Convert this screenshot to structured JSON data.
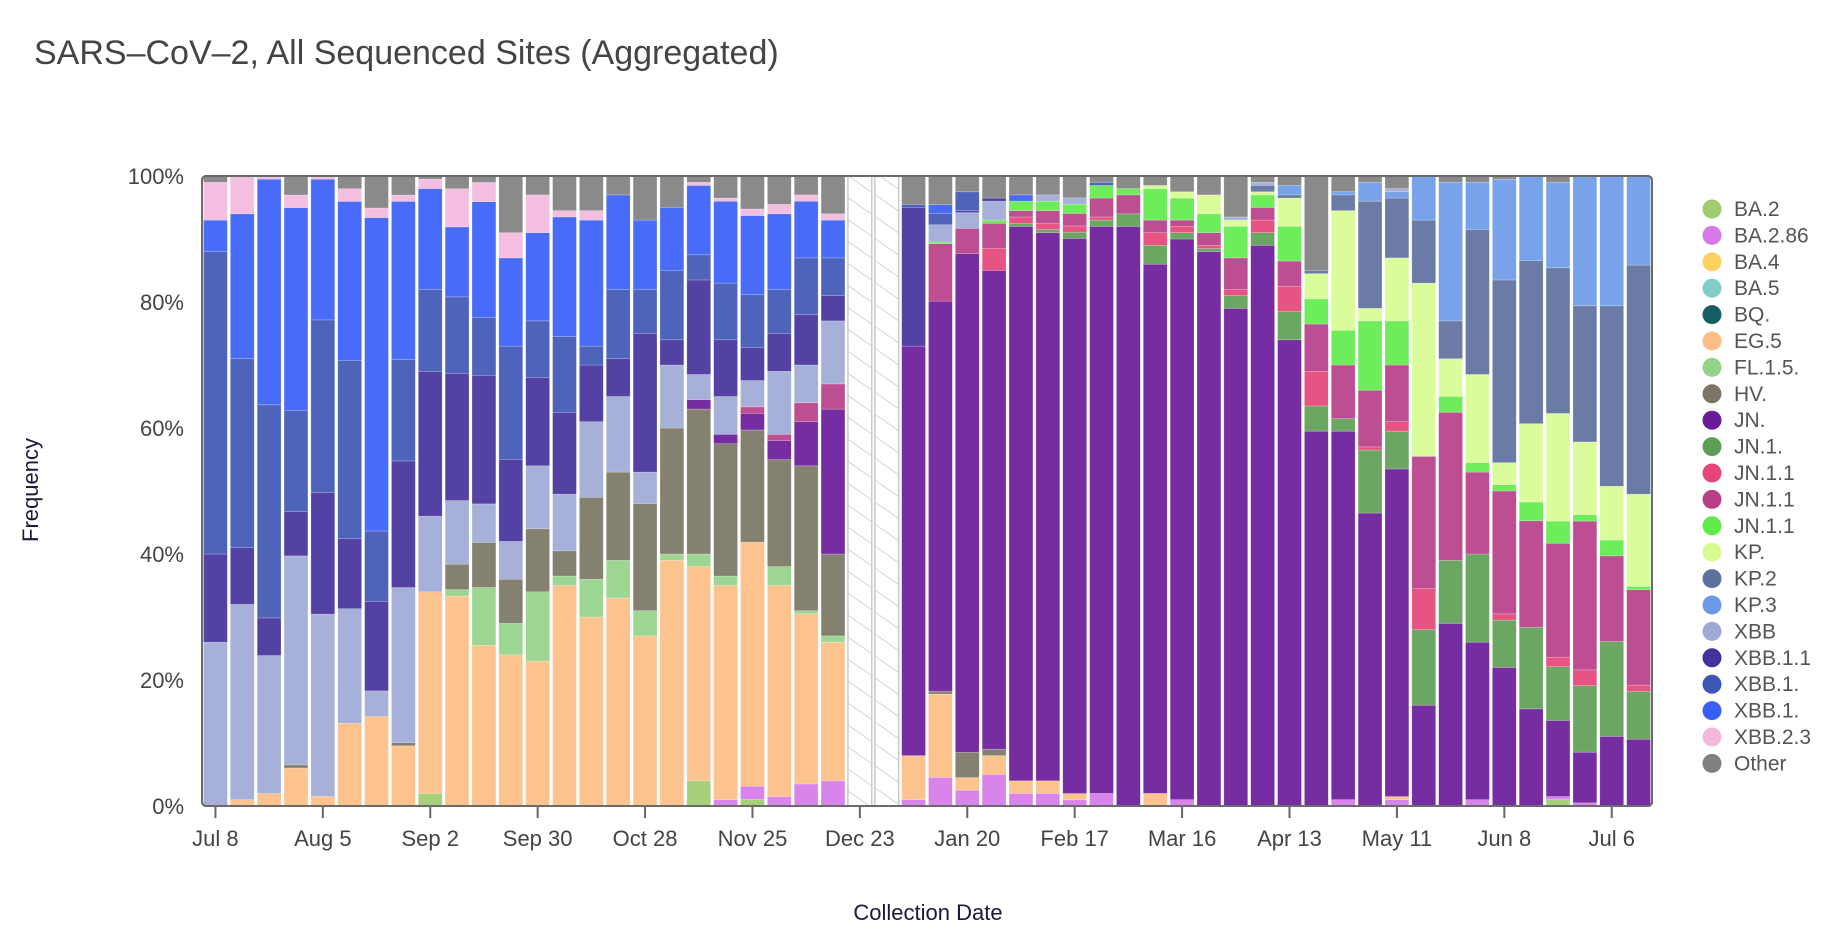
{
  "chart_data": {
    "type": "bar",
    "stacked": true,
    "normalized": true,
    "title": "SARS–CoV–2, All Sequenced Sites (Aggregated)",
    "xlabel": "Collection Date",
    "ylabel": "Frequency",
    "ylim": [
      0,
      100
    ],
    "y_ticks": [
      "0%",
      "20%",
      "40%",
      "60%",
      "80%",
      "100%"
    ],
    "x_tick_labels": [
      "Jul 8",
      "Aug 5",
      "Sep 2",
      "Sep 30",
      "Oct 28",
      "Nov 25",
      "Dec 23",
      "Jan 20",
      "Feb 17",
      "Mar 16",
      "Apr 13",
      "May 11",
      "Jun 8",
      "Jul 6"
    ],
    "x_tick_every_n_weeks": 4,
    "weeks": 54,
    "missing_weeks": [
      24,
      25
    ],
    "legend_position": "right",
    "series": [
      {
        "name": "BA.2",
        "color": "#a0cc6e"
      },
      {
        "name": "BA.2.86",
        "color": "#d57ae8"
      },
      {
        "name": "BA.4",
        "color": "#fcd15e"
      },
      {
        "name": "BA.5",
        "color": "#84cdc6"
      },
      {
        "name": "BQ.",
        "color": "#155e63"
      },
      {
        "name": "EG.5",
        "color": "#fdbe86"
      },
      {
        "name": "FL.1.5.",
        "color": "#95d28a"
      },
      {
        "name": "HV.",
        "color": "#7b7665"
      },
      {
        "name": "JN.",
        "color": "#6a1b9a"
      },
      {
        "name": "JN.1.",
        "color": "#5e9e56"
      },
      {
        "name": "JN.1.1",
        "color": "#e5457a"
      },
      {
        "name": "JN.1.1",
        "color": "#b63f88"
      },
      {
        "name": "JN.1.1",
        "color": "#5fec4b"
      },
      {
        "name": "KP.",
        "color": "#d8fc91"
      },
      {
        "name": "KP.2",
        "color": "#5d719d"
      },
      {
        "name": "KP.3",
        "color": "#6c9ae8"
      },
      {
        "name": "XBB",
        "color": "#9ea9d6"
      },
      {
        "name": "XBB.1.1",
        "color": "#44329c"
      },
      {
        "name": "XBB.1.",
        "color": "#3e57b4"
      },
      {
        "name": "XBB.1.",
        "color": "#3860f6"
      },
      {
        "name": "XBB.2.3",
        "color": "#f2b9dc"
      },
      {
        "name": "Other",
        "color": "#808080"
      }
    ],
    "bar_stacks_percent_bottom_to_top": [
      {
        "XBB": 26,
        "XBB.1.1": 14,
        "XBB.1.a": 48,
        "XBB.1.b": 5,
        "XBB.2.3": 6,
        "Other": 1
      },
      {
        "EG.5": 1,
        "XBB": 31,
        "XBB.1.1": 9,
        "XBB.1.a": 30,
        "XBB.1.b": 23,
        "XBB.2.3": 6
      },
      {
        "EG.5": 2,
        "XBB": 22,
        "XBB.1.1": 6,
        "XBB.1.a": 34,
        "XBB.1.b": 36,
        "XBB.2.3": 0.5
      },
      {
        "EG.5": 6,
        "HV.": 0.5,
        "XBB": 33,
        "XBB.1.1": 7,
        "XBB.1.a": 16,
        "XBB.1.b": 32,
        "XBB.2.3": 2,
        "Other": 3
      },
      {
        "EG.5": 1.5,
        "XBB": 28.5,
        "XBB.1.1": 19,
        "XBB.1.a": 27,
        "XBB.1.b": 22,
        "XBB.2.3": 0.5
      },
      {
        "EG.5": 13,
        "XBB": 18,
        "XBB.1.1": 11,
        "XBB.1.a": 28,
        "XBB.1.b": 25,
        "XBB.2.3": 2,
        "Other": 2
      },
      {
        "EG.5": 14,
        "XBB": 4,
        "XBB.1.1": 14,
        "XBB.1.a": 11,
        "XBB.1.b": 49,
        "XBB.2.3": 1.5,
        "Other": 5
      },
      {
        "EG.5": 9.5,
        "HV.": 0.5,
        "XBB": 24.5,
        "XBB.1.1": 20,
        "XBB.1.a": 16,
        "XBB.1.b": 25,
        "XBB.2.3": 1,
        "Other": 3
      },
      {
        "BA.2": 2,
        "EG.5": 32,
        "XBB": 12,
        "XBB.1.1": 23,
        "XBB.1.a": 13,
        "XBB.1.b": 16,
        "XBB.2.3": 1.5,
        "Other": 0.5
      },
      {
        "FL.1.5.": 1,
        "EG.5": 33,
        "HV.": 4,
        "XBB": 10,
        "XBB.1.1": 20,
        "XBB.1.a": 12,
        "XBB.1.b": 11,
        "XBB.2.3": 6,
        "Other": 2
      },
      {
        "EG.5": 25,
        "FL.1.5.": 9,
        "HV.": 7,
        "XBB": 6,
        "XBB.1.1": 20,
        "XBB.1.a": 9,
        "XBB.1.b": 18,
        "XBB.2.3": 3,
        "Other": 1
      },
      {
        "EG.5": 24,
        "FL.1.5.": 5,
        "HV.": 7,
        "XBB": 6,
        "XBB.1.1": 13,
        "XBB.1.a": 18,
        "XBB.1.b": 14,
        "XBB.2.3": 4,
        "Other": 9
      },
      {
        "EG.5": 23,
        "FL.1.5.": 11,
        "HV.": 10,
        "XBB": 10,
        "XBB.1.1": 14,
        "XBB.1.a": 9,
        "XBB.1.b": 14,
        "XBB.2.3": 6,
        "Other": 3
      },
      {
        "EG.5": 35,
        "FL.1.5.": 1.5,
        "HV.": 4,
        "XBB": 9,
        "XBB.1.1": 13,
        "XBB.1.a": 12,
        "XBB.1.b": 19,
        "XBB.2.3": 1,
        "Other": 5.5
      },
      {
        "EG.5": 30,
        "FL.1.5.": 6,
        "HV.": 13,
        "XBB": 12,
        "XBB.1.1": 9,
        "XBB.1.a": 3,
        "XBB.1.b": 20,
        "XBB.2.3": 1.5,
        "Other": 5.5
      },
      {
        "EG.5": 33,
        "FL.1.5.": 6,
        "HV.": 14,
        "XBB": 12,
        "XBB.1.1": 6,
        "XBB.1.a": 11,
        "XBB.1.b": 15,
        "Other": 3
      },
      {
        "EG.5": 27,
        "FL.1.5.": 4,
        "HV.": 17,
        "XBB": 5,
        "XBB.1.1": 22,
        "XBB.1.a": 7,
        "XBB.1.b": 11,
        "Other": 7
      },
      {
        "EG.5": 39,
        "FL.1.5.": 1,
        "HV.": 20,
        "XBB": 10,
        "XBB.1.1": 4,
        "XBB.1.a": 11,
        "XBB.1.b": 10,
        "Other": 5
      },
      {
        "BA.2": 4,
        "EG.5": 34,
        "FL.1.5.": 2,
        "HV.": 23,
        "JN.": 1.5,
        "XBB": 4,
        "XBB.1.1": 15,
        "XBB.1.a": 4,
        "XBB.1.b": 11,
        "XBB.2.3": 0.5,
        "Other": 1
      },
      {
        "BA.2.86": 1,
        "EG.5": 34,
        "FL.1.5.": 1.5,
        "HV.": 21,
        "JN.": 1.5,
        "XBB": 6,
        "XBB.1.1": 9,
        "XBB.1.a": 9,
        "XBB.1.b": 13,
        "XBB.2.3": 0.5,
        "Other": 3.5
      },
      {
        "BA.2.86": 2,
        "BA.2": 1,
        "EG.5": 37,
        "HV.": 17,
        "JN.": 2.5,
        "JN.1.1b": 1,
        "XBB": 4,
        "XBB.1.1": 5,
        "XBB.1.a": 8,
        "XBB.1.b": 12,
        "XBB.2.3": 1,
        "Other": 5
      },
      {
        "BA.2.86": 1.5,
        "EG.5": 33.5,
        "FL.1.5.": 3,
        "HV.": 17,
        "JN.": 3,
        "JN.1.1b": 1,
        "XBB": 10,
        "XBB.1.1": 6,
        "XBB.1.a": 7,
        "XBB.1.b": 12,
        "XBB.2.3": 1.5,
        "Other": 4.5
      },
      {
        "BA.2.86": 3.5,
        "EG.5": 27,
        "FL.1.5.": 0.5,
        "HV.": 23,
        "JN.": 7,
        "JN.1.1b": 3,
        "XBB": 6,
        "XBB.1.1": 8,
        "XBB.1.a": 9,
        "XBB.1.b": 9,
        "XBB.2.3": 1,
        "Other": 3
      },
      {
        "BA.2.86": 4,
        "EG.5": 22,
        "FL.1.5.": 1,
        "HV.": 13,
        "JN.": 23,
        "JN.1.1b": 4,
        "XBB": 10,
        "XBB.1.1": 4,
        "XBB.1.a": 6,
        "XBB.1.b": 6,
        "XBB.2.3": 1,
        "Other": 6
      },
      null,
      null,
      {
        "BA.2.86": 1,
        "EG.5": 7,
        "JN.": 65,
        "XBB.1.1": 22,
        "XBB.1.a": 0.5,
        "Other": 4.5
      },
      {
        "BA.2.86": 5,
        "EG.5": 14.5,
        "HV.": 0.5,
        "JN.": 68,
        "JN.1.1b": 10,
        "JN.1.1c": 0.3,
        "XBB": 3,
        "XBB.1.a": 2,
        "XBB.1.b": 1.5,
        "Other": 5
      },
      {
        "BA.2.86": 2.5,
        "EG.5": 2,
        "HV.": 4,
        "JN.": 79,
        "JN.1.1b": 4,
        "XBB": 2.5,
        "XBB.1.a": 3,
        "XBB.1.1": 0.3,
        "Other": 2.5
      },
      {
        "BA.2.86": 5,
        "EG.5": 3,
        "HV.": 1,
        "JN.": 76,
        "JN.1.1a": 3.5,
        "JN.1.1b": 4,
        "JN.1.1c": 0.5,
        "XBB": 3,
        "XBB.1.1": 0.5,
        "Other": 3.5
      },
      {
        "BA.2.86": 2,
        "EG.5": 2,
        "JN.": 88,
        "JN.1.": 0.5,
        "JN.1.1a": 1,
        "JN.1.1b": 1,
        "JN.1.1c": 1.5,
        "XBB.1.b": 1,
        "Other": 3
      },
      {
        "BA.2.86": 2,
        "EG.5": 2,
        "JN.": 87,
        "JN.1.": 0.5,
        "JN.1.1a": 1,
        "JN.1.1b": 2,
        "JN.1.1c": 1.5,
        "XBB": 1,
        "Other": 3
      },
      {
        "BA.2.86": 1,
        "EG.5": 1,
        "JN.": 89,
        "JN.1.": 1,
        "JN.1.1a": 1,
        "JN.1.1b": 2,
        "JN.1.1c": 1.5,
        "XBB": 1,
        "Other": 3.5
      },
      {
        "BA.2.86": 2,
        "JN.": 90,
        "JN.1.": 1,
        "JN.1.1a": 0.5,
        "JN.1.1b": 3,
        "JN.1.1c": 2,
        "XBB.1.a": 0.5,
        "Other": 1
      },
      {
        "JN.": 92,
        "JN.1.": 2,
        "JN.1.1b": 3,
        "JN.1.1c": 1,
        "Other": 2
      },
      {
        "EG.5": 2,
        "JN.": 84,
        "JN.1.": 3,
        "JN.1.1a": 2,
        "JN.1.1b": 2,
        "JN.1.1c": 5,
        "KP.": 0.5,
        "Other": 1.5
      },
      {
        "BA.2.86": 1,
        "JN.": 89,
        "JN.1.": 1,
        "JN.1.1a": 1,
        "JN.1.1b": 1,
        "JN.1.1c": 3.5,
        "KP.": 1,
        "Other": 2.5
      },
      {
        "JN.": 88,
        "JN.1.": 0.5,
        "JN.1.1a": 0.5,
        "JN.1.1b": 2,
        "JN.1.1c": 3,
        "KP.": 3,
        "Other": 3
      },
      {
        "JN.": 79,
        "JN.1.": 2,
        "JN.1.1a": 1,
        "JN.1.1b": 5,
        "JN.1.1c": 5,
        "KP.": 1,
        "XBB": 0.5,
        "Other": 6.5
      },
      {
        "JN.": 89,
        "JN.1.": 2,
        "JN.1.1a": 2,
        "JN.1.1b": 2,
        "JN.1.1c": 2,
        "KP.": 0.5,
        "KP.2": 1,
        "XBB": 0.5,
        "Other": 1
      },
      {
        "JN.": 74,
        "JN.1.": 4.5,
        "JN.1.1a": 4,
        "JN.1.1b": 4,
        "JN.1.1c": 5.5,
        "KP.": 4.5,
        "KP.2": 0.5,
        "KP.3": 1.5,
        "Other": 1.5
      },
      {
        "JN.": 59.5,
        "JN.1.": 4,
        "JN.1.1a": 5.5,
        "JN.1.1b": 7.5,
        "JN.1.1c": 4,
        "KP.": 4,
        "KP.2": 0.5,
        "Other": 15
      },
      {
        "BA.2.86": 1,
        "JN.": 58.5,
        "JN.1.": 2,
        "JN.1.1b": 8.5,
        "JN.1.1c": 5.5,
        "KP.": 19,
        "KP.2": 2.5,
        "KP.3": 0.5,
        "Other": 2.5
      },
      {
        "JN.": 46.5,
        "JN.1.": 10,
        "JN.1.1a": 0.5,
        "JN.1.1b": 9,
        "JN.1.1c": 11,
        "KP.": 2,
        "KP.2": 17,
        "KP.3": 3,
        "Other": 1
      },
      {
        "BA.2.86": 1,
        "EG.5": 0.5,
        "JN.": 52,
        "JN.1.": 6,
        "JN.1.1a": 1.5,
        "JN.1.1b": 9,
        "JN.1.1c": 7,
        "KP.": 10,
        "KP.2": 9.5,
        "KP.3": 1,
        "XBB": 0.5,
        "Other": 2
      },
      {
        "JN.": 16,
        "JN.1.": 12,
        "JN.1.1a": 6.5,
        "JN.1.1b": 21,
        "KP.": 27.5,
        "KP.2": 10,
        "KP.3": 7
      },
      {
        "JN.": 29,
        "JN.1.": 10,
        "JN.1.1b": 23.5,
        "JN.1.1c": 2.5,
        "KP.": 6,
        "KP.2": 6,
        "KP.3": 22,
        "Other": 1
      },
      {
        "BA.2.86": 1,
        "JN.": 25,
        "JN.1.": 14,
        "JN.1.1b": 13,
        "JN.1.1c": 1.5,
        "KP.": 14,
        "KP.2": 23,
        "KP.3": 7.5,
        "Other": 1
      },
      {
        "JN.": 22,
        "JN.1.": 7.5,
        "JN.1.1a": 1,
        "JN.1.1b": 19.5,
        "JN.1.1c": 1,
        "KP.": 3.5,
        "KP.2": 29,
        "KP.3": 16,
        "Other": 0.5
      },
      {
        "JN.": 15.5,
        "JN.1.": 13,
        "JN.1.1b": 17,
        "JN.1.1c": 3,
        "KP.": 12.5,
        "KP.2": 26,
        "KP.3": 13.5
      },
      {
        "BA.2": 1,
        "BA.2.86": 0.5,
        "JN.": 12,
        "JN.1.": 8.5,
        "JN.1.1a": 1.5,
        "JN.1.1b": 18,
        "JN.1.1c": 3.5,
        "KP.": 17,
        "KP.2": 23,
        "KP.3": 13.5,
        "Other": 1
      },
      {
        "BA.2.86": 0.5,
        "JN.": 8,
        "JN.1.": 10.5,
        "JN.1.1a": 2.5,
        "JN.1.1b": 23.5,
        "JN.1.1c": 1,
        "KP.": 11.5,
        "KP.2": 21.5,
        "KP.3": 20.5
      },
      {
        "JN.": 11,
        "JN.1.": 15,
        "JN.1.1b": 13.5,
        "JN.1.1c": 2.5,
        "KP.": 8.5,
        "KP.2": 28.5,
        "KP.3": 20.5
      },
      {
        "JN.": 10.5,
        "JN.1.": 7.5,
        "JN.1.1a": 1,
        "JN.1.1b": 15,
        "JN.1.1c": 0.5,
        "KP.": 14.5,
        "KP.2": 36,
        "KP.3": 14
      }
    ]
  }
}
